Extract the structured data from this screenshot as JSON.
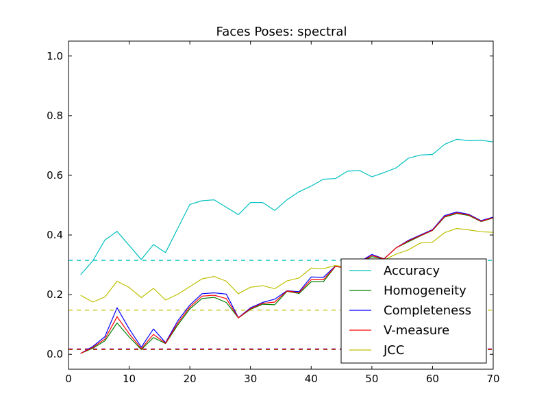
{
  "chart_data": {
    "type": "line",
    "title": "Faces Poses: spectral",
    "xlabel": "",
    "ylabel": "",
    "xlim": [
      0,
      70
    ],
    "ylim": [
      -0.05,
      1.05
    ],
    "xticks": [
      0,
      10,
      20,
      30,
      40,
      50,
      60,
      70
    ],
    "yticks": [
      0.0,
      0.2,
      0.4,
      0.6,
      0.8,
      1.0
    ],
    "xtick_labels": [
      "0",
      "10",
      "20",
      "30",
      "40",
      "50",
      "60",
      "70"
    ],
    "ytick_labels": [
      "0.0",
      "0.2",
      "0.4",
      "0.6",
      "0.8",
      "1.0"
    ],
    "grid": false,
    "legend_position": "lower-right",
    "x": [
      2,
      4,
      6,
      8,
      10,
      12,
      14,
      16,
      18,
      20,
      22,
      24,
      26,
      28,
      30,
      32,
      34,
      36,
      38,
      40,
      42,
      44,
      46,
      48,
      50,
      52,
      54,
      56,
      58,
      60,
      62,
      64,
      66,
      68,
      70
    ],
    "series": [
      {
        "name": "Accuracy",
        "color": "#00bfbf",
        "values": [
          0.267,
          0.313,
          0.383,
          0.412,
          0.365,
          0.318,
          0.368,
          0.341,
          0.422,
          0.502,
          0.515,
          0.518,
          0.493,
          0.468,
          0.509,
          0.509,
          0.482,
          0.518,
          0.545,
          0.564,
          0.587,
          0.589,
          0.614,
          0.616,
          0.595,
          0.609,
          0.625,
          0.657,
          0.668,
          0.67,
          0.704,
          0.721,
          0.716,
          0.718,
          0.712
        ],
        "baseline": 0.315
      },
      {
        "name": "Homogeneity",
        "color": "#008000",
        "values": [
          0.003,
          0.02,
          0.045,
          0.105,
          0.058,
          0.016,
          0.056,
          0.036,
          0.098,
          0.152,
          0.187,
          0.191,
          0.174,
          0.122,
          0.151,
          0.168,
          0.166,
          0.211,
          0.204,
          0.243,
          0.243,
          0.295,
          0.288,
          0.308,
          0.327,
          0.32,
          0.357,
          0.377,
          0.397,
          0.415,
          0.46,
          0.472,
          0.465,
          0.445,
          0.457
        ],
        "baseline": 0.016
      },
      {
        "name": "Completeness",
        "color": "#0000ff",
        "values": [
          0.003,
          0.026,
          0.059,
          0.156,
          0.085,
          0.024,
          0.085,
          0.039,
          0.112,
          0.165,
          0.203,
          0.206,
          0.202,
          0.123,
          0.156,
          0.174,
          0.185,
          0.213,
          0.21,
          0.259,
          0.258,
          0.296,
          0.289,
          0.31,
          0.335,
          0.32,
          0.357,
          0.382,
          0.4,
          0.418,
          0.465,
          0.477,
          0.469,
          0.448,
          0.46
        ],
        "baseline": 0.018
      },
      {
        "name": "V-measure",
        "color": "#ff0000",
        "values": [
          0.003,
          0.023,
          0.051,
          0.126,
          0.069,
          0.019,
          0.067,
          0.037,
          0.104,
          0.158,
          0.195,
          0.198,
          0.187,
          0.122,
          0.153,
          0.171,
          0.175,
          0.212,
          0.207,
          0.25,
          0.25,
          0.295,
          0.288,
          0.309,
          0.331,
          0.32,
          0.357,
          0.38,
          0.398,
          0.416,
          0.462,
          0.474,
          0.467,
          0.446,
          0.458
        ],
        "baseline": 0.017
      },
      {
        "name": "JCC",
        "color": "#bfbf00",
        "values": [
          0.198,
          0.175,
          0.192,
          0.245,
          0.224,
          0.19,
          0.221,
          0.182,
          0.201,
          0.227,
          0.253,
          0.261,
          0.245,
          0.203,
          0.225,
          0.23,
          0.22,
          0.246,
          0.256,
          0.289,
          0.287,
          0.298,
          0.29,
          0.308,
          0.32,
          0.316,
          0.336,
          0.35,
          0.373,
          0.376,
          0.408,
          0.422,
          0.417,
          0.411,
          0.409
        ],
        "baseline": 0.148
      }
    ]
  }
}
